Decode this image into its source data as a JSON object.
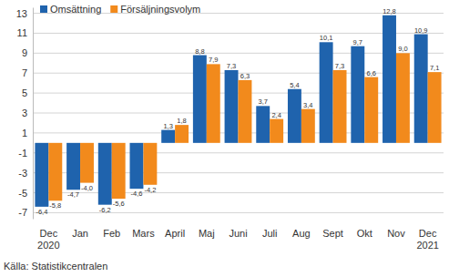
{
  "chart_data": {
    "type": "bar",
    "categories": [
      "Dec 2020",
      "Jan",
      "Feb",
      "Mars",
      "April",
      "Maj",
      "Juni",
      "Juli",
      "Aug",
      "Sept",
      "Okt",
      "Nov",
      "Dec 2021"
    ],
    "series": [
      {
        "name": "Omsättning",
        "color": "#1f63ad",
        "values": [
          -6.4,
          -4.7,
          -6.2,
          -4.6,
          1.3,
          8.8,
          7.3,
          3.7,
          5.4,
          10.1,
          9.7,
          12.8,
          10.9
        ],
        "value_labels": [
          "-6,4",
          "-4,7",
          "-6,2",
          "-4,6",
          "1,3",
          "8,8",
          "7,3",
          "3,7",
          "5,4",
          "10,1",
          "9,7",
          "12,8",
          "10,9"
        ]
      },
      {
        "name": "Försäljningsvolym",
        "color": "#f28a1c",
        "values": [
          -5.8,
          -4.0,
          -5.6,
          -4.2,
          1.8,
          7.9,
          6.3,
          2.4,
          3.4,
          7.3,
          6.6,
          9.0,
          7.1
        ],
        "value_labels": [
          "-5,8",
          "-4,0",
          "-5,6",
          "-4,2",
          "1,8",
          "7,9",
          "6,3",
          "2,4",
          "3,4",
          "7,3",
          "6,6",
          "9,0",
          "7,1"
        ]
      }
    ],
    "ylim": [
      -7.6,
      13.6
    ],
    "yticks": [
      -7,
      -5,
      -3,
      -1,
      1,
      3,
      5,
      7,
      9,
      11,
      13
    ],
    "grid": true,
    "legend": "top-left",
    "data_labels": true,
    "source": "Källa: Statistikcentralen"
  }
}
